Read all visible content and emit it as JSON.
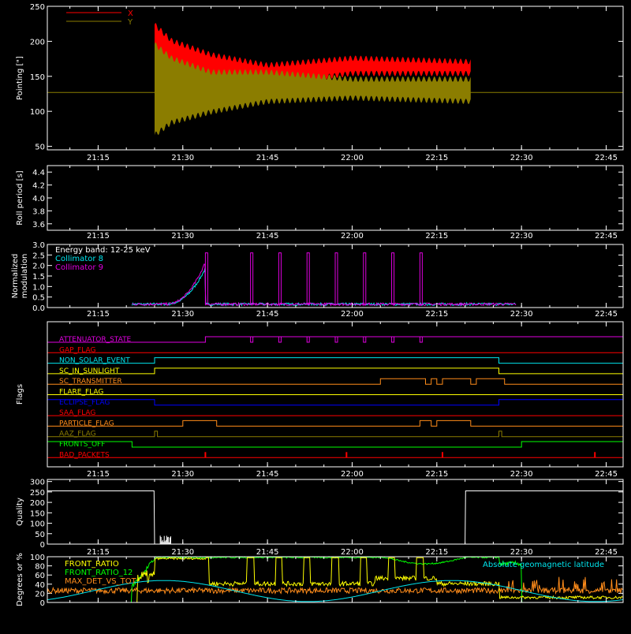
{
  "colors": {
    "background": "#000000",
    "axes": "#ffffff",
    "red": "#ff0000",
    "olive": "#8b7d00",
    "cyan": "#00e5ee",
    "magenta": "#e000e0",
    "blue": "#0000ff",
    "green": "#00ff00",
    "yellow": "#ffff00",
    "orange": "#ff8c1a"
  },
  "time_ticks": [
    "21:15",
    "21:30",
    "21:45",
    "22:00",
    "22:15",
    "22:30",
    "22:45"
  ],
  "time_range": [
    "21:06",
    "22:48"
  ],
  "chart_data": [
    {
      "id": "pointing",
      "type": "line",
      "ylabel": "Pointing [\"]",
      "ylim": [
        45,
        250
      ],
      "yticks": [
        "50",
        "100",
        "150",
        "200",
        "250"
      ],
      "legend": [
        {
          "name": "X",
          "color": "red"
        },
        {
          "name": "Y",
          "color": "olive"
        }
      ],
      "legend_position": "top-left",
      "reference_line": 127,
      "series": [
        {
          "name": "X",
          "color": "red",
          "t_start": "21:25",
          "t_end": "22:21",
          "envelope": {
            "t": [
              "21:25",
              "21:28",
              "21:35",
              "21:45",
              "22:00",
              "22:21"
            ],
            "low": [
              178,
              150,
              140,
              135,
              150,
              150
            ],
            "high": [
              228,
              205,
              185,
              170,
              180,
              175
            ]
          }
        },
        {
          "name": "Y",
          "color": "olive",
          "t_start": "21:25",
          "t_end": "22:21",
          "envelope": {
            "t": [
              "21:25",
              "21:28",
              "21:35",
              "21:45",
              "22:00",
              "22:21"
            ],
            "low": [
              62,
              80,
              95,
              110,
              115,
              110
            ],
            "high": [
              200,
              180,
              160,
              160,
              150,
              150
            ]
          }
        }
      ]
    },
    {
      "id": "roll",
      "type": "line",
      "ylabel": "Roll period [s]",
      "ylim": [
        3.5,
        4.5
      ],
      "yticks": [
        "3.6",
        "3.8",
        "4.0",
        "4.2",
        "4.4"
      ],
      "series": []
    },
    {
      "id": "modulation",
      "type": "line",
      "ylabel": "Normalized modulation",
      "ylabel_lines": [
        "Normalized",
        "modulation"
      ],
      "ylim": [
        0,
        3.0
      ],
      "yticks": [
        "0.0",
        "0.5",
        "1.0",
        "1.5",
        "2.0",
        "2.5",
        "3.0"
      ],
      "legend": [
        {
          "name": "Energy band: 12-25 keV",
          "color": "axes"
        },
        {
          "name": "Collimator 8",
          "color": "cyan"
        },
        {
          "name": "Collimator 9",
          "color": "magenta"
        }
      ],
      "legend_position": "top-left",
      "spikes": [
        "21:34",
        "21:42",
        "21:47",
        "21:52",
        "21:57",
        "22:02",
        "22:07",
        "22:12"
      ],
      "spike_height": 2.6,
      "data_range": [
        "21:21",
        "22:29"
      ]
    },
    {
      "id": "flags",
      "type": "table",
      "ylabel": "Flags",
      "rows": [
        {
          "name": "ATTENUATOR_STATE",
          "color": "magenta",
          "high": [
            [
              "21:34",
              "22:48"
            ]
          ],
          "dips": [
            "21:42",
            "21:47",
            "21:52",
            "21:57",
            "22:02",
            "22:07",
            "22:12"
          ]
        },
        {
          "name": "GAP_FLAG",
          "color": "red",
          "high": []
        },
        {
          "name": "NON_SOLAR_EVENT",
          "color": "cyan",
          "high": [
            [
              "21:25",
              "22:26"
            ]
          ]
        },
        {
          "name": "SC_IN_SUNLIGHT",
          "color": "yellow",
          "high": [
            [
              "21:25",
              "22:26"
            ]
          ]
        },
        {
          "name": "SC_TRANSMITTER",
          "color": "orange",
          "high": [
            [
              "22:05",
              "22:13"
            ],
            [
              "22:14",
              "22:15"
            ],
            [
              "22:16",
              "22:21"
            ],
            [
              "22:22",
              "22:27"
            ]
          ]
        },
        {
          "name": "FLARE_FLAG",
          "color": "yellow",
          "high": []
        },
        {
          "name": "ECLIPSE_FLAG",
          "color": "blue",
          "high": [
            [
              "21:06",
              "21:25"
            ],
            [
              "22:26",
              "22:48"
            ]
          ]
        },
        {
          "name": "SAA_FLAG",
          "color": "red",
          "high": []
        },
        {
          "name": "PARTICLE_FLAG",
          "color": "orange",
          "high": [
            [
              "21:30",
              "21:36"
            ],
            [
              "22:12",
              "22:14"
            ],
            [
              "22:15",
              "22:21"
            ]
          ]
        },
        {
          "name": "AAZ_FLAG",
          "color": "olive",
          "high": [
            [
              "21:25",
              "21:25.5"
            ],
            [
              "22:26",
              "22:26.5"
            ]
          ]
        },
        {
          "name": "FRONTS_OFF",
          "color": "green",
          "high": [
            [
              "21:06",
              "21:21"
            ],
            [
              "22:30",
              "22:48"
            ]
          ]
        },
        {
          "name": "BAD_PACKETS",
          "color": "red",
          "high": [],
          "ticks": [
            "21:34",
            "21:59",
            "22:16",
            "22:43"
          ]
        }
      ]
    },
    {
      "id": "quality",
      "type": "line",
      "ylabel": "Quality",
      "ylim": [
        0,
        310
      ],
      "yticks": [
        "0",
        "50",
        "100",
        "150",
        "200",
        "250",
        "300"
      ],
      "series": [
        {
          "name": "",
          "color": "axes",
          "t": [
            "21:06",
            "21:24.9",
            "21:25",
            "22:20",
            "22:20.1",
            "22:48"
          ],
          "v": [
            255,
            255,
            0,
            0,
            255,
            255
          ]
        }
      ],
      "small_burst_t": [
        "21:26",
        "21:28"
      ]
    },
    {
      "id": "degrees",
      "type": "line",
      "ylabel": "Degrees or %",
      "ylim": [
        0,
        100
      ],
      "yticks": [
        "0",
        "20",
        "40",
        "60",
        "80",
        "100"
      ],
      "legend": [
        {
          "name": "FRONT_RATIO",
          "color": "yellow"
        },
        {
          "name": "FRONT_RATIO_12",
          "color": "green"
        },
        {
          "name": "MAX_DET_VS_TOT",
          "color": "orange"
        }
      ],
      "legend_position": "top-left",
      "annotation": {
        "text": "Absolute geomagnetic latitude",
        "color": "cyan",
        "position": "top-right"
      },
      "latitude": {
        "t": [
          "21:06",
          "21:31",
          "21:57",
          "22:22",
          "22:48"
        ],
        "v": [
          8,
          48,
          2,
          48,
          8
        ]
      }
    }
  ]
}
